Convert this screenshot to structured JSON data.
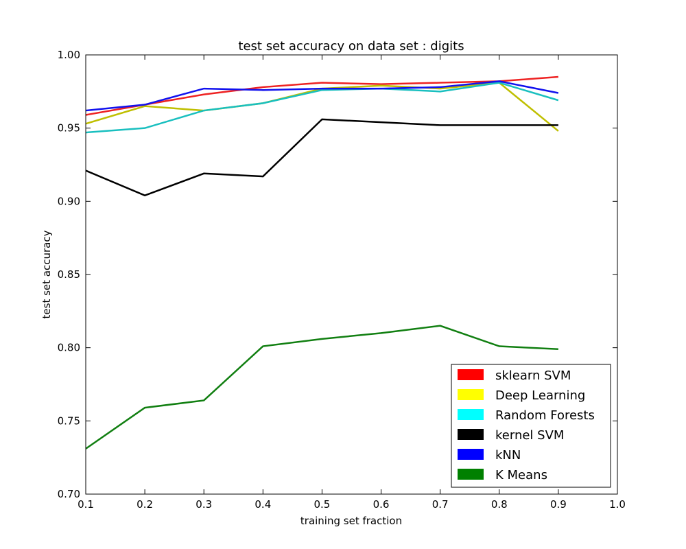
{
  "chart_data": {
    "type": "line",
    "title": "test set accuracy on data set : digits",
    "xlabel": "training set fraction",
    "ylabel": "test set accuracy",
    "xlim": [
      0.1,
      1.0
    ],
    "ylim": [
      0.7,
      1.0
    ],
    "xticks": [
      "0.1",
      "0.2",
      "0.3",
      "0.4",
      "0.5",
      "0.6",
      "0.7",
      "0.8",
      "0.9",
      "1.0"
    ],
    "yticks": [
      "0.70",
      "0.75",
      "0.80",
      "0.85",
      "0.90",
      "0.95",
      "1.00"
    ],
    "grid": false,
    "legend_position": "lower-right",
    "x": [
      0.1,
      0.2,
      0.3,
      0.4,
      0.5,
      0.6,
      0.7,
      0.8,
      0.9
    ],
    "series": [
      {
        "name": "sklearn SVM",
        "color": "#ff0000",
        "line_color": "#ee2222",
        "values": [
          0.959,
          0.966,
          0.973,
          0.978,
          0.981,
          0.98,
          0.981,
          0.982,
          0.985
        ]
      },
      {
        "name": "Deep Learning",
        "color": "#ffff00",
        "line_color": "#bfbf00",
        "values": [
          0.953,
          0.965,
          0.962,
          0.967,
          0.977,
          0.979,
          0.977,
          0.981,
          0.948
        ]
      },
      {
        "name": "Random Forests",
        "color": "#00ffff",
        "line_color": "#19bfbf",
        "values": [
          0.947,
          0.95,
          0.962,
          0.967,
          0.976,
          0.977,
          0.975,
          0.981,
          0.969
        ]
      },
      {
        "name": "kernel SVM",
        "color": "#000000",
        "line_color": "#000000",
        "values": [
          0.921,
          0.904,
          0.919,
          0.917,
          0.956,
          0.954,
          0.952,
          0.952,
          0.952
        ]
      },
      {
        "name": "kNN",
        "color": "#0000ff",
        "line_color": "#1111ee",
        "values": [
          0.962,
          0.966,
          0.977,
          0.976,
          0.977,
          0.977,
          0.978,
          0.982,
          0.974
        ]
      },
      {
        "name": "K Means",
        "color": "#008000",
        "line_color": "#117f11",
        "values": [
          0.731,
          0.759,
          0.764,
          0.801,
          0.806,
          0.81,
          0.815,
          0.801,
          0.799
        ]
      }
    ]
  }
}
